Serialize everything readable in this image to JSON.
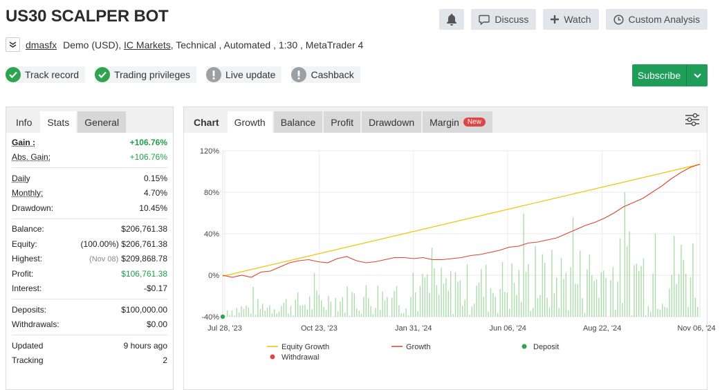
{
  "title": "US30 SCALPER BOT",
  "actions": {
    "bell_icon": "bell-icon",
    "discuss": "Discuss",
    "watch": "Watch",
    "custom_analysis": "Custom Analysis"
  },
  "meta": {
    "user": "dmasfx",
    "account": "Demo (USD),",
    "broker": "IC Markets",
    "details": ", Technical , Automated , 1:30 , MetaTrader 4"
  },
  "badges": [
    {
      "label": "Track record",
      "status": "ok"
    },
    {
      "label": "Trading privileges",
      "status": "ok"
    },
    {
      "label": "Live update",
      "status": "warn"
    },
    {
      "label": "Cashback",
      "status": "warn"
    }
  ],
  "subscribe": "Subscribe",
  "left_tabs": [
    "Info",
    "Stats",
    "General"
  ],
  "stats": {
    "gain_label": "Gain :",
    "gain": "+106.76%",
    "abs_gain_label": "Abs. Gain:",
    "abs_gain": "+106.76%",
    "daily_label": "Daily",
    "daily": "0.15%",
    "monthly_label": "Monthly:",
    "monthly": "4.70%",
    "drawdown_label": "Drawdown:",
    "drawdown": "10.45%",
    "balance_label": "Balance:",
    "balance": "$206,761.38",
    "equity_label": "Equity:",
    "equity_pct": "(100.00%)",
    "equity": "$206,761.38",
    "highest_label": "Highest:",
    "highest_date": "(Nov 08)",
    "highest": "$209,868.78",
    "profit_label": "Profit:",
    "profit": "$106,761.38",
    "interest_label": "Interest:",
    "interest": "-$0.17",
    "deposits_label": "Deposits:",
    "deposits": "$100,000.00",
    "withdrawals_label": "Withdrawals:",
    "withdrawals": "$0.00",
    "updated_label": "Updated",
    "updated": "9 hours ago",
    "tracking_label": "Tracking",
    "tracking": "2"
  },
  "chart_tabs": {
    "label": "Chart",
    "items": [
      "Growth",
      "Balance",
      "Profit",
      "Drawdown",
      "Margin"
    ],
    "new_badge": "New"
  },
  "chart_data": {
    "type": "line",
    "x_ticks": [
      "Jul 28, '23",
      "Oct 23, '23",
      "Jan 31, '24",
      "Jun 06, '24",
      "Aug 22, '24",
      "Nov 06, '24"
    ],
    "y_ticks": [
      "120%",
      "80%",
      "40%",
      "0%",
      "-40%"
    ],
    "ylim": [
      -40,
      120
    ],
    "grid": true,
    "legend": "bottom",
    "series": [
      {
        "name": "Equity Growth",
        "color": "#f2c200",
        "kind": "line",
        "points": [
          [
            0,
            -1
          ],
          [
            100,
            107
          ]
        ]
      },
      {
        "name": "Growth",
        "color": "#d9442f",
        "kind": "line",
        "points": [
          [
            0,
            0
          ],
          [
            2,
            -2
          ],
          [
            4,
            0
          ],
          [
            6,
            -2
          ],
          [
            8,
            3
          ],
          [
            10,
            4
          ],
          [
            12,
            8
          ],
          [
            14,
            12
          ],
          [
            16,
            14
          ],
          [
            18,
            15
          ],
          [
            20,
            13
          ],
          [
            22,
            12
          ],
          [
            24,
            16
          ],
          [
            26,
            18
          ],
          [
            28,
            14
          ],
          [
            30,
            12
          ],
          [
            32,
            13
          ],
          [
            34,
            15
          ],
          [
            36,
            17
          ],
          [
            38,
            17
          ],
          [
            40,
            16
          ],
          [
            42,
            17
          ],
          [
            44,
            15
          ],
          [
            46,
            15
          ],
          [
            48,
            16
          ],
          [
            50,
            17
          ],
          [
            52,
            19
          ],
          [
            54,
            20
          ],
          [
            56,
            22
          ],
          [
            58,
            24
          ],
          [
            60,
            27
          ],
          [
            62,
            28
          ],
          [
            64,
            31
          ],
          [
            66,
            32
          ],
          [
            68,
            34
          ],
          [
            70,
            36
          ],
          [
            72,
            40
          ],
          [
            74,
            44
          ],
          [
            76,
            48
          ],
          [
            78,
            51
          ],
          [
            80,
            55
          ],
          [
            82,
            60
          ],
          [
            84,
            66
          ],
          [
            86,
            70
          ],
          [
            88,
            74
          ],
          [
            90,
            80
          ],
          [
            92,
            86
          ],
          [
            94,
            93
          ],
          [
            96,
            99
          ],
          [
            98,
            104
          ],
          [
            100,
            107
          ]
        ]
      },
      {
        "name": "Deposit",
        "color": "#2ea44f",
        "kind": "marker",
        "points": [
          [
            0,
            -40
          ]
        ]
      },
      {
        "name": "Withdrawal",
        "color": "#e04545",
        "kind": "marker",
        "points": []
      }
    ]
  }
}
